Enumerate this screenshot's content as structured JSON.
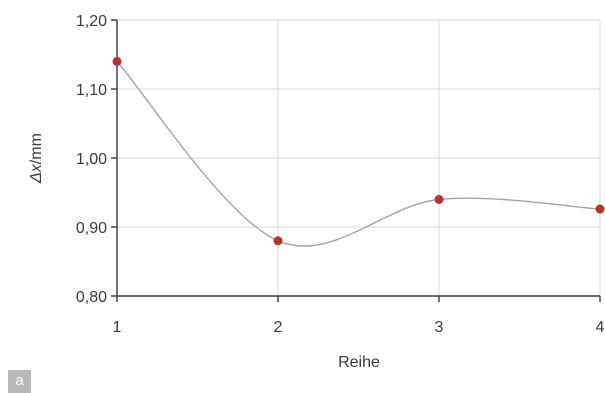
{
  "panel_label": "a",
  "chart_data": {
    "type": "line",
    "smooth": true,
    "xlabel": "Reihe",
    "ylabel_symbol": "Δx",
    "ylabel_unit": "/mm",
    "x": [
      1,
      2,
      3,
      4
    ],
    "xlim": [
      1,
      4
    ],
    "x_tick_labels": [
      "1",
      "2",
      "3",
      "4"
    ],
    "ylim": [
      0.8,
      1.2
    ],
    "y_ticks": [
      0.8,
      0.9,
      1.0,
      1.1,
      1.2
    ],
    "y_tick_labels": [
      "0,80",
      "0,90",
      "1,00",
      "1,10",
      "1,20"
    ],
    "grid": true,
    "series": [
      {
        "values": [
          1.14,
          0.88,
          0.94,
          0.926
        ]
      }
    ],
    "colors": {
      "line": "#a3a3a3",
      "marker": "#b3342e",
      "grid": "#d9d9d9",
      "axis": "#3a3a3a"
    }
  }
}
